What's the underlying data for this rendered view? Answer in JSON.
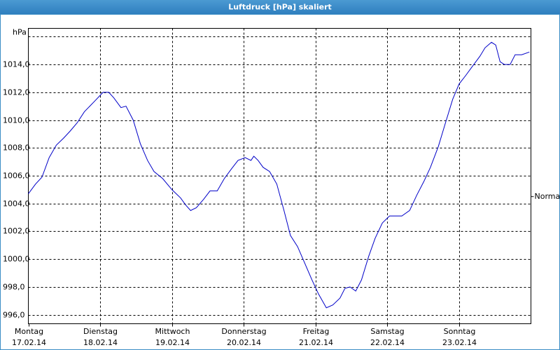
{
  "chart_data": {
    "type": "line",
    "title": "Luftdruck [hPa] skaliert",
    "x": [
      0,
      0.1,
      0.19,
      0.29,
      0.39,
      0.49,
      0.58,
      0.68,
      0.78,
      0.93,
      1.04,
      1.12,
      1.19,
      1.29,
      1.36,
      1.46,
      1.56,
      1.66,
      1.75,
      1.87,
      2.0,
      2.12,
      2.19,
      2.26,
      2.34,
      2.44,
      2.53,
      2.63,
      2.73,
      2.83,
      2.92,
      3.02,
      3.1,
      3.14,
      3.2,
      3.27,
      3.36,
      3.46,
      3.56,
      3.65,
      3.75,
      3.85,
      3.95,
      4.04,
      4.15,
      4.24,
      4.34,
      4.41,
      4.48,
      4.56,
      4.64,
      4.74,
      4.83,
      4.93,
      5.03,
      5.12,
      5.2,
      5.31,
      5.41,
      5.51,
      5.6,
      5.71,
      5.81,
      5.91,
      6.0,
      6.09,
      6.19,
      6.29,
      6.36,
      6.45,
      6.51,
      6.57,
      6.63,
      6.71,
      6.78,
      6.87,
      6.98
    ],
    "series": [
      {
        "color": "#0000c8",
        "values": [
          1004.7,
          1005.4,
          1005.9,
          1007.3,
          1008.2,
          1008.7,
          1009.2,
          1009.8,
          1010.6,
          1011.4,
          1012.0,
          1012.0,
          1011.6,
          1010.9,
          1011.0,
          1010.0,
          1008.3,
          1007.1,
          1006.3,
          1005.8,
          1005.0,
          1004.4,
          1003.9,
          1003.5,
          1003.7,
          1004.3,
          1004.9,
          1004.9,
          1005.8,
          1006.5,
          1007.1,
          1007.3,
          1007.1,
          1007.4,
          1007.1,
          1006.6,
          1006.3,
          1005.4,
          1003.5,
          1001.7,
          1000.9,
          999.7,
          998.5,
          997.5,
          996.5,
          996.7,
          997.2,
          997.9,
          998.0,
          997.7,
          998.5,
          1000.2,
          1001.5,
          1002.6,
          1003.1,
          1003.1,
          1003.1,
          1003.5,
          1004.6,
          1005.6,
          1006.6,
          1008.1,
          1009.8,
          1011.5,
          1012.6,
          1013.2,
          1013.9,
          1014.6,
          1015.2,
          1015.6,
          1015.4,
          1014.2,
          1014.0,
          1014.0,
          1014.7,
          1014.7,
          1014.9
        ]
      }
    ],
    "xlim": [
      0,
      7
    ],
    "xticks": [
      {
        "value": 0,
        "label": "Montag",
        "date": "17.02.14"
      },
      {
        "value": 1,
        "label": "Dienstag",
        "date": "18.02.14"
      },
      {
        "value": 2,
        "label": "Mittwoch",
        "date": "19.02.14"
      },
      {
        "value": 3,
        "label": "Donnerstag",
        "date": "20.02.14"
      },
      {
        "value": 4,
        "label": "Freitag",
        "date": "21.02.14"
      },
      {
        "value": 5,
        "label": "Samstag",
        "date": "22.02.14"
      },
      {
        "value": 6,
        "label": "Sonntag",
        "date": "23.02.14"
      }
    ],
    "ylim": [
      995.35,
      1016.6
    ],
    "yticks": [
      {
        "value": 996,
        "label": "996,0"
      },
      {
        "value": 998,
        "label": "998,0"
      },
      {
        "value": 1000,
        "label": "1000,0"
      },
      {
        "value": 1002,
        "label": "1002,0"
      },
      {
        "value": 1004,
        "label": "1004,0"
      },
      {
        "value": 1006,
        "label": "1006,0"
      },
      {
        "value": 1008,
        "label": "1008,0"
      },
      {
        "value": 1010,
        "label": "1010,0"
      },
      {
        "value": 1012,
        "label": "1012,0"
      },
      {
        "value": 1014,
        "label": "1014,0"
      },
      {
        "value": 1016,
        "label": "hPa"
      }
    ],
    "normal_marker": {
      "label": "Normal",
      "value": 1004.5
    },
    "grid": true
  }
}
